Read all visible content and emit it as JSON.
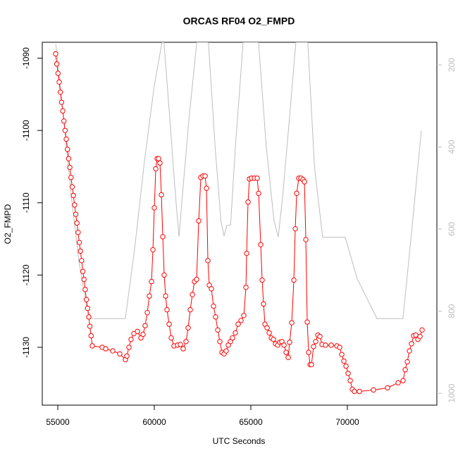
{
  "chart_data": {
    "type": "line",
    "title": "ORCAS RF04 O2_FMPD",
    "xlabel": "UTC Seconds",
    "ylabel": "O2_FMPD",
    "xlim": [
      54197,
      74635
    ],
    "xticks": [
      55000,
      60000,
      65000,
      70000
    ],
    "ylim": [
      -1138.0,
      -1087.8
    ],
    "yticks": [
      -1090,
      -1100,
      -1110,
      -1120,
      -1130
    ],
    "y2lim": [
      1029,
      145
    ],
    "y2ticks": [
      200,
      400,
      600,
      800,
      1000
    ],
    "series": [
      {
        "name": "O2_FMPD",
        "color": "#ff0000",
        "markers": true,
        "x": [
          54890,
          54951,
          55012,
          55074,
          55135,
          55196,
          55257,
          55318,
          55380,
          55441,
          55502,
          55563,
          55624,
          55686,
          55747,
          55808,
          55869,
          55930,
          55992,
          56053,
          56114,
          56175,
          56236,
          56298,
          56359,
          56420,
          56481,
          56542,
          56604,
          56665,
          56726,
          56787,
          57300,
          57482,
          57847,
          58212,
          58504,
          58577,
          58687,
          58796,
          58942,
          59125,
          59307,
          59417,
          59526,
          59636,
          59745,
          59855,
          59928,
          60001,
          60074,
          60147,
          60220,
          60293,
          60366,
          60439,
          60512,
          60585,
          60658,
          60767,
          60877,
          61023,
          61205,
          61351,
          61497,
          61643,
          61753,
          61862,
          61972,
          62081,
          62191,
          62300,
          62410,
          62519,
          62629,
          62702,
          62775,
          62848,
          62957,
          63067,
          63176,
          63286,
          63395,
          63505,
          63614,
          63724,
          63833,
          63943,
          64052,
          64198,
          64344,
          64490,
          64636,
          64746,
          64782,
          64855,
          64928,
          65038,
          65184,
          65330,
          65403,
          65512,
          65585,
          65658,
          65731,
          65841,
          65950,
          66060,
          66169,
          66279,
          66388,
          66498,
          66607,
          66717,
          66826,
          66936,
          67009,
          67118,
          67228,
          67301,
          67374,
          67483,
          67593,
          67702,
          67775,
          67848,
          67921,
          67994,
          68067,
          68140,
          68250,
          68359,
          68469,
          68578,
          68688,
          68870,
          69162,
          69454,
          69600,
          69710,
          69819,
          69929,
          70038,
          70148,
          70257,
          70367,
          70622,
          71352,
          72082,
          72630,
          72885,
          72995,
          73104,
          73214,
          73323,
          73433,
          73542,
          73652,
          73761,
          73871
        ],
        "values": [
          -1089.4,
          -1090.8,
          -1092.1,
          -1093.3,
          -1094.7,
          -1096.1,
          -1097.3,
          -1098.7,
          -1100.0,
          -1101.2,
          -1102.6,
          -1103.9,
          -1105.1,
          -1106.5,
          -1107.8,
          -1109.0,
          -1110.3,
          -1111.6,
          -1112.8,
          -1114.1,
          -1115.5,
          -1116.7,
          -1118.0,
          -1119.5,
          -1120.6,
          -1122.0,
          -1123.4,
          -1124.6,
          -1125.8,
          -1127.1,
          -1128.4,
          -1129.8,
          -1130.0,
          -1130.2,
          -1130.5,
          -1130.9,
          -1131.7,
          -1131.2,
          -1130.0,
          -1128.9,
          -1128.1,
          -1127.8,
          -1128.7,
          -1128.2,
          -1127.0,
          -1125.2,
          -1122.9,
          -1120.9,
          -1116.5,
          -1110.7,
          -1105.3,
          -1103.9,
          -1103.9,
          -1104.5,
          -1108.9,
          -1114.7,
          -1120.0,
          -1122.9,
          -1124.8,
          -1126.8,
          -1128.7,
          -1129.8,
          -1129.7,
          -1129.6,
          -1130.2,
          -1129.2,
          -1127.3,
          -1124.8,
          -1122.7,
          -1120.9,
          -1120.6,
          -1112.5,
          -1106.5,
          -1106.3,
          -1106.3,
          -1108.0,
          -1118.0,
          -1121.4,
          -1121.9,
          -1124.3,
          -1125.8,
          -1127.6,
          -1129.2,
          -1130.7,
          -1130.9,
          -1130.5,
          -1129.7,
          -1129.2,
          -1128.7,
          -1128.0,
          -1126.8,
          -1126.3,
          -1125.6,
          -1121.7,
          -1117.0,
          -1109.9,
          -1106.7,
          -1106.6,
          -1106.6,
          -1106.6,
          -1108.7,
          -1115.8,
          -1120.7,
          -1124.0,
          -1126.8,
          -1127.3,
          -1128.0,
          -1128.7,
          -1128.9,
          -1129.5,
          -1129.7,
          -1129.3,
          -1129.2,
          -1129.7,
          -1130.7,
          -1131.4,
          -1129.3,
          -1126.6,
          -1120.7,
          -1113.6,
          -1108.7,
          -1106.6,
          -1106.6,
          -1106.8,
          -1107.1,
          -1115.1,
          -1126.5,
          -1130.7,
          -1132.4,
          -1132.4,
          -1129.9,
          -1129.2,
          -1128.3,
          -1128.5,
          -1129.6,
          -1129.7,
          -1129.7,
          -1129.8,
          -1130.0,
          -1131.0,
          -1131.9,
          -1132.6,
          -1133.6,
          -1134.6,
          -1135.8,
          -1136.1,
          -1136.1,
          -1135.9,
          -1135.6,
          -1134.9,
          -1134.6,
          -1133.1,
          -1132.0,
          -1130.5,
          -1129.5,
          -1128.4,
          -1128.3,
          -1128.9,
          -1128.5,
          -1127.6
        ]
      },
      {
        "color": "#bebebe",
        "axis": "y2",
        "markers": false,
        "x": [
          54900,
          55300,
          55700,
          56100,
          56500,
          56750,
          58500,
          59000,
          59500,
          60000,
          60400,
          60500,
          60800,
          61100,
          61280,
          61450,
          61800,
          62200,
          62800,
          63150,
          63450,
          63610,
          63750,
          63950,
          64200,
          64600,
          65400,
          65800,
          66200,
          66420,
          66650,
          67000,
          67330,
          67950,
          68300,
          68720,
          69890,
          70500,
          71530,
          72880,
          73300,
          73830
        ],
        "values": [
          150,
          330,
          520,
          680,
          790,
          818,
          818,
          640,
          430,
          250,
          145,
          145,
          330,
          520,
          619,
          520,
          330,
          145,
          145,
          400,
          580,
          617,
          592,
          590,
          400,
          145,
          145,
          400,
          580,
          619,
          520,
          330,
          145,
          145,
          450,
          620,
          620,
          720,
          818,
          818,
          620,
          360
        ]
      }
    ]
  }
}
